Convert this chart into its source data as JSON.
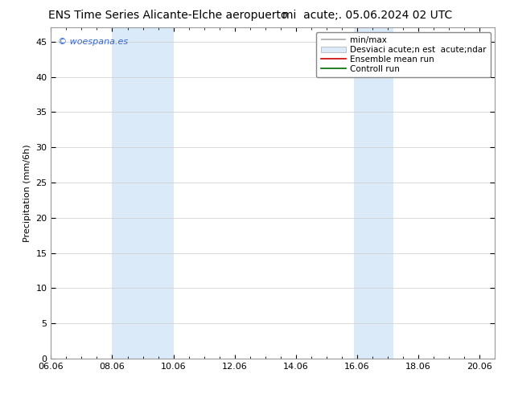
{
  "title_left": "ENS Time Series Alicante-Elche aeropuerto",
  "title_right": "mi  acute;. 05.06.2024 02 UTC",
  "ylabel": "Precipitation (mm/6h)",
  "watermark": "© woespana.es",
  "background_color": "#ffffff",
  "plot_bg_color": "#ffffff",
  "ylim": [
    0,
    47
  ],
  "yticks": [
    0,
    5,
    10,
    15,
    20,
    25,
    30,
    35,
    40,
    45
  ],
  "xlim_start": 0.0,
  "xlim_end": 14.5,
  "xtick_labels": [
    "06.06",
    "08.06",
    "10.06",
    "12.06",
    "14.06",
    "16.06",
    "18.06",
    "20.06"
  ],
  "xtick_positions": [
    0,
    2,
    4,
    6,
    8,
    10,
    12,
    14
  ],
  "shaded_bands": [
    {
      "x_start": 2.0,
      "x_end": 4.0,
      "color": "#daeaf8"
    },
    {
      "x_start": 9.9,
      "x_end": 11.2,
      "color": "#daeaf8"
    }
  ],
  "legend_label_minmax": "min/max",
  "legend_label_std": "Desviaci acute;n est  acute;ndar",
  "legend_label_ens": "Ensemble mean run",
  "legend_label_ctrl": "Controll run",
  "legend_color_std": "#daeaf8",
  "legend_color_ens": "#cc0000",
  "legend_color_ctrl": "#006600",
  "title_fontsize": 10,
  "axis_fontsize": 8,
  "tick_fontsize": 8,
  "legend_fontsize": 7.5,
  "watermark_fontsize": 8,
  "watermark_color": "#3366cc",
  "grid_color": "#cccccc",
  "spine_color": "#999999"
}
